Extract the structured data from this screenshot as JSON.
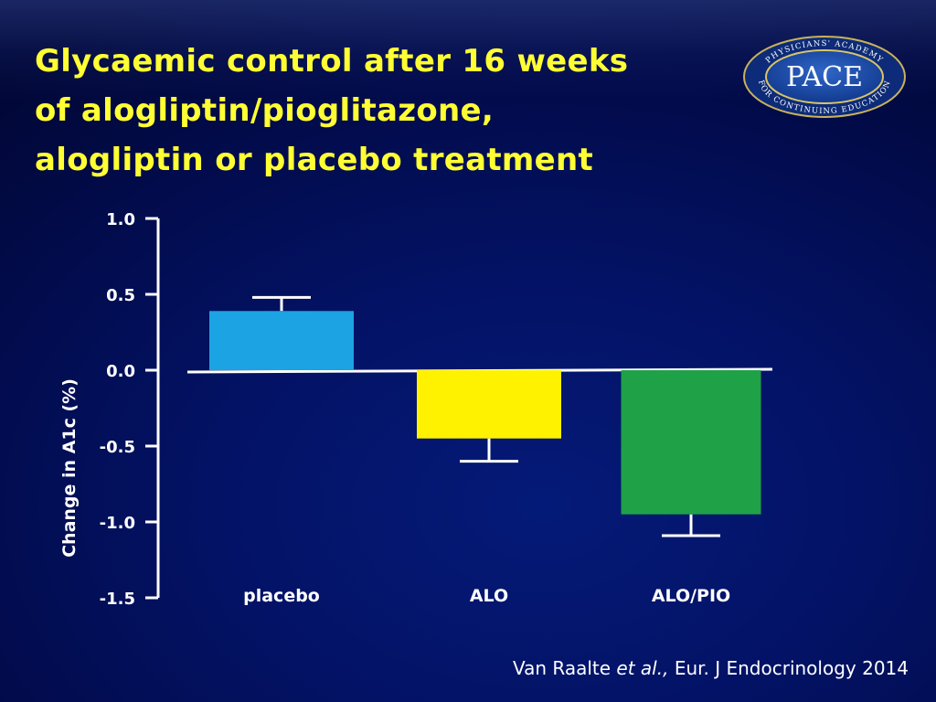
{
  "slide": {
    "title_lines": [
      "Glycaemic control after 16 weeks",
      "of alogliptin/pioglitazone,",
      "alogliptin or placebo treatment"
    ],
    "logo": {
      "center_text": "PACE",
      "ring_text": "PHYSICIANS' ACADEMY FOR CONTINUING EDUCATION"
    },
    "citation": {
      "authors": "Van Raalte",
      "etal": "et al.,",
      "source": "Eur. J Endocrinology 2014"
    }
  },
  "chart_data": {
    "type": "bar",
    "title": "",
    "xlabel": "",
    "ylabel": "Change in  A1c (%)",
    "ylim": [
      -1.5,
      1.0
    ],
    "yticks": [
      1.0,
      0.5,
      0.0,
      -0.5,
      -1.0,
      -1.5
    ],
    "ytick_labels": [
      "1.0",
      "0.5",
      "0.0",
      "-0.5",
      "-1.0",
      "-1.5"
    ],
    "categories": [
      "placebo",
      "ALO",
      "ALO/PIO"
    ],
    "values": [
      0.39,
      -0.45,
      -0.95
    ],
    "error": [
      0.09,
      0.15,
      0.14
    ],
    "colors": [
      "#1ba3e3",
      "#fff200",
      "#1fa148"
    ],
    "grid": false,
    "legend": "none"
  }
}
